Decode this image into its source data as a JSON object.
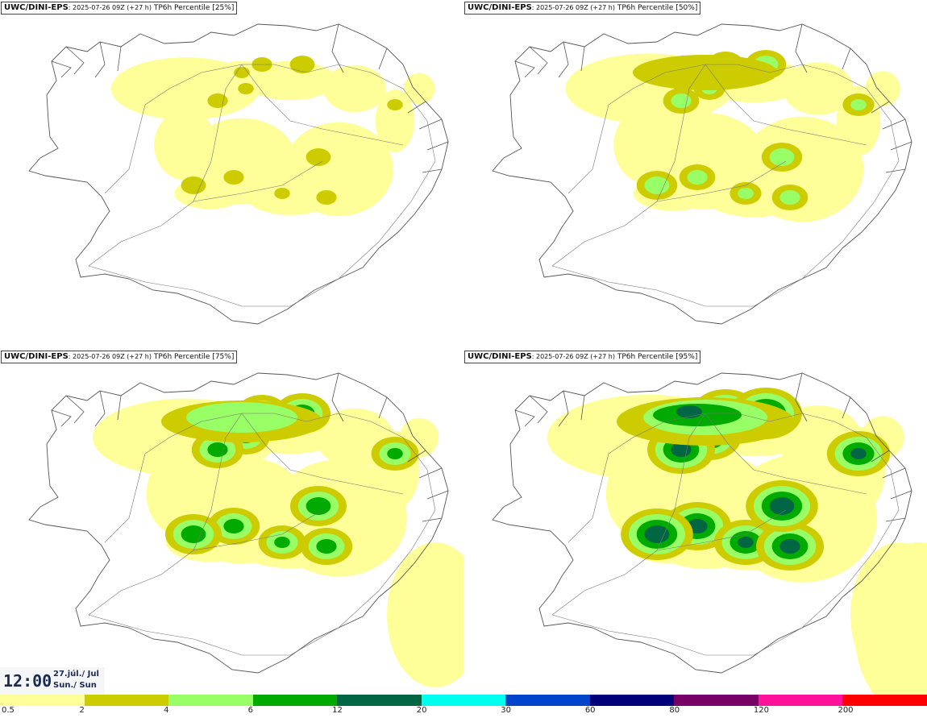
{
  "panels": [
    {
      "source": "UWC/DINI-EPS",
      "run": ": 2025-07-26 09Z (+27 h)",
      "field": " TP6h Percentile [25%]",
      "intensity": 1
    },
    {
      "source": "UWC/DINI-EPS",
      "run": ": 2025-07-26 09Z (+27 h)",
      "field": " TP6h Percentile [50%]",
      "intensity": 2
    },
    {
      "source": "UWC/DINI-EPS",
      "run": ": 2025-07-26 09Z (+27 h)",
      "field": " TP6h Percentile [75%]",
      "intensity": 3
    },
    {
      "source": "UWC/DINI-EPS",
      "run": ": 2025-07-26 09Z (+27 h)",
      "field": " TP6h Percentile [95%]",
      "intensity": 4
    }
  ],
  "valid_time": {
    "time": "12:00",
    "date": "27.júl./ Jul",
    "day": "Sun./ Sun"
  },
  "legend": {
    "colors": [
      "#ffff99",
      "#cccc00",
      "#99ff66",
      "#00aa00",
      "#006644",
      "#00ffee",
      "#0044cc",
      "#000077",
      "#770066",
      "#ff1199",
      "#ff0000"
    ],
    "labels": [
      "0.5",
      "2",
      "4",
      "6",
      "12",
      "20",
      "30",
      "60",
      "80",
      "120",
      "200"
    ]
  }
}
